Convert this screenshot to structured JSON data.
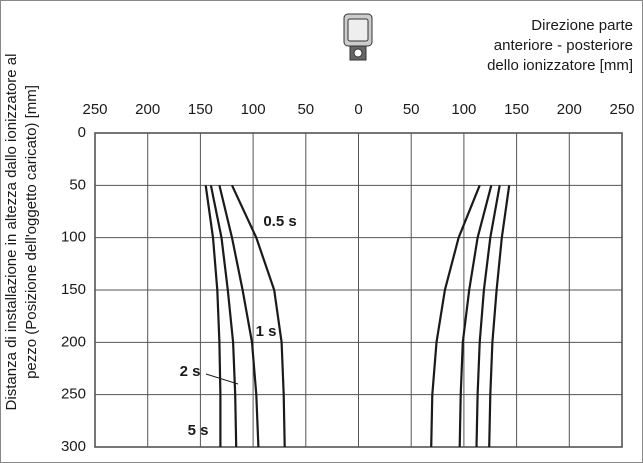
{
  "chart_data": {
    "type": "line",
    "x_label": [
      "Direzione parte",
      "anteriore - posteriore",
      "dello ionizzatore [mm]"
    ],
    "y_label": [
      "Distanza di installazione in altezza dallo ionizzatore al",
      "pezzo (Posizione dell'oggetto caricato) [mm]"
    ],
    "xlim": [
      -250,
      250
    ],
    "xticks": [
      {
        "value": -250,
        "label": "250"
      },
      {
        "value": -200,
        "label": "200"
      },
      {
        "value": -150,
        "label": "150"
      },
      {
        "value": -100,
        "label": "100"
      },
      {
        "value": -50,
        "label": "50"
      },
      0,
      50,
      100,
      150,
      200,
      250
    ],
    "ylim": [
      0,
      300
    ],
    "y_inverted": true,
    "yticks": [
      0,
      50,
      100,
      150,
      200,
      250,
      300
    ],
    "grid": true,
    "series": [
      {
        "name": "0.5 s",
        "color": "#1a1a1a",
        "curves": [
          {
            "x": [
              -120,
              -97,
              -80,
              -73,
              -71,
              -70
            ],
            "y": [
              50,
              100,
              150,
              200,
              250,
              300
            ]
          },
          {
            "x": [
              115,
              95,
              82,
              74,
              70,
              69
            ],
            "y": [
              50,
              100,
              150,
              200,
              250,
              300
            ]
          }
        ]
      },
      {
        "name": "1 s",
        "color": "#1a1a1a",
        "curves": [
          {
            "x": [
              -132,
              -120,
              -110,
              -101,
              -97,
              -95
            ],
            "y": [
              50,
              100,
              150,
              200,
              250,
              300
            ]
          },
          {
            "x": [
              126,
              113,
              105,
              99,
              97,
              96
            ],
            "y": [
              50,
              100,
              150,
              200,
              250,
              300
            ]
          }
        ]
      },
      {
        "name": "2 s",
        "color": "#1a1a1a",
        "curves": [
          {
            "x": [
              -140,
              -130,
              -124,
              -119,
              -117,
              -116
            ],
            "y": [
              50,
              100,
              150,
              200,
              250,
              300
            ]
          },
          {
            "x": [
              134,
              125,
              119,
              115,
              113,
              112
            ],
            "y": [
              50,
              100,
              150,
              200,
              250,
              300
            ]
          }
        ]
      },
      {
        "name": "5 s",
        "color": "#1a1a1a",
        "curves": [
          {
            "x": [
              -145,
              -138,
              -134,
              -132,
              -131,
              -131
            ],
            "y": [
              50,
              100,
              150,
              200,
              250,
              300
            ]
          },
          {
            "x": [
              143,
              136,
              131,
              127,
              125,
              124
            ],
            "y": [
              50,
              100,
              150,
              200,
              250,
              300
            ]
          }
        ]
      }
    ]
  }
}
